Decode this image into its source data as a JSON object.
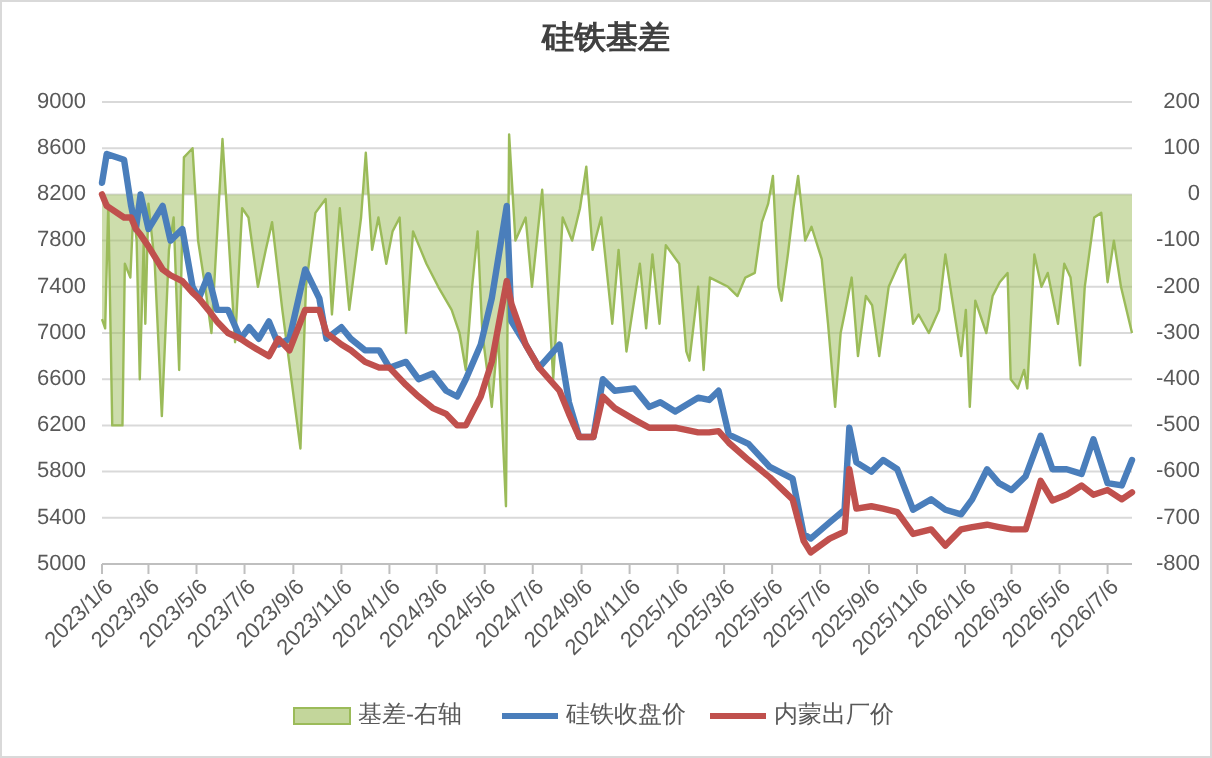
{
  "chart_data": {
    "type": "line",
    "title": "硅铁基差",
    "legend": "bottom",
    "grid": "y",
    "xlim": [
      "2023-01-06",
      "2026-08-06"
    ],
    "xticks": [
      {
        "value": "2023-01-06",
        "label": "2023/1/6"
      },
      {
        "value": "2023-03-06",
        "label": "2023/3/6"
      },
      {
        "value": "2023-05-06",
        "label": "2023/5/6"
      },
      {
        "value": "2023-07-06",
        "label": "2023/7/6"
      },
      {
        "value": "2023-09-06",
        "label": "2023/9/6"
      },
      {
        "value": "2023-11-06",
        "label": "2023/11/6"
      },
      {
        "value": "2024-01-06",
        "label": "2024/1/6"
      },
      {
        "value": "2024-03-06",
        "label": "2024/3/6"
      },
      {
        "value": "2024-05-06",
        "label": "2024/5/6"
      },
      {
        "value": "2024-07-06",
        "label": "2024/7/6"
      },
      {
        "value": "2024-09-06",
        "label": "2024/9/6"
      },
      {
        "value": "2024-11-06",
        "label": "2024/11/6"
      },
      {
        "value": "2025-01-06",
        "label": "2025/1/6"
      },
      {
        "value": "2025-03-06",
        "label": "2025/3/6"
      },
      {
        "value": "2025-05-06",
        "label": "2025/5/6"
      },
      {
        "value": "2025-07-06",
        "label": "2025/7/6"
      },
      {
        "value": "2025-09-06",
        "label": "2025/9/6"
      },
      {
        "value": "2025-11-06",
        "label": "2025/11/6"
      },
      {
        "value": "2026-01-06",
        "label": "2026/1/6"
      },
      {
        "value": "2026-03-06",
        "label": "2026/3/6"
      },
      {
        "value": "2026-05-06",
        "label": "2026/5/6"
      },
      {
        "value": "2026-07-06",
        "label": "2026/7/6"
      }
    ],
    "ylim": [
      5000,
      9000
    ],
    "yticks": [
      5000,
      5400,
      5800,
      6200,
      6600,
      7000,
      7400,
      7800,
      8200,
      8600,
      9000
    ],
    "y2lim": [
      -800,
      200
    ],
    "y2ticks": [
      -800,
      -700,
      -600,
      -500,
      -400,
      -300,
      -200,
      -100,
      0,
      100,
      200
    ],
    "series": [
      {
        "name": "基差-右轴",
        "type": "area",
        "axis": "y2",
        "color": "#9bbb59",
        "x": [
          "2023-01-06",
          "2023-01-10",
          "2023-01-14",
          "2023-01-19",
          "2023-02-01",
          "2023-02-04",
          "2023-02-11",
          "2023-02-15",
          "2023-02-19",
          "2023-02-23",
          "2023-02-28",
          "2023-03-02",
          "2023-03-06",
          "2023-03-14",
          "2023-03-23",
          "2023-04-01",
          "2023-04-07",
          "2023-04-14",
          "2023-04-20",
          "2023-05-01",
          "2023-05-08",
          "2023-05-17",
          "2023-05-25",
          "2023-06-08",
          "2023-06-16",
          "2023-06-24",
          "2023-07-03",
          "2023-07-11",
          "2023-07-23",
          "2023-08-02",
          "2023-08-10",
          "2023-08-23",
          "2023-09-05",
          "2023-09-15",
          "2023-09-22",
          "2023-10-04",
          "2023-10-17",
          "2023-10-25",
          "2023-11-04",
          "2023-11-16",
          "2023-12-01",
          "2023-12-07",
          "2023-12-15",
          "2023-12-23",
          "2024-01-02",
          "2024-01-10",
          "2024-01-19",
          "2024-01-27",
          "2024-02-05",
          "2024-02-22",
          "2024-03-08",
          "2024-03-25",
          "2024-04-04",
          "2024-04-12",
          "2024-04-20",
          "2024-04-27",
          "2024-05-03",
          "2024-05-15",
          "2024-05-23",
          "2024-06-02",
          "2024-06-06",
          "2024-06-14",
          "2024-06-27",
          "2024-07-05",
          "2024-07-18",
          "2024-08-01",
          "2024-08-13",
          "2024-08-25",
          "2024-09-04",
          "2024-09-12",
          "2024-09-20",
          "2024-10-01",
          "2024-10-15",
          "2024-10-23",
          "2024-11-02",
          "2024-11-10",
          "2024-11-19",
          "2024-11-27",
          "2024-12-05",
          "2024-12-14",
          "2024-12-22",
          "2025-01-08",
          "2025-01-17",
          "2025-01-21",
          "2025-02-01",
          "2025-02-08",
          "2025-02-16",
          "2025-03-11",
          "2025-03-23",
          "2025-04-02",
          "2025-04-14",
          "2025-04-23",
          "2025-05-01",
          "2025-05-07",
          "2025-05-14",
          "2025-05-18",
          "2025-05-26",
          "2025-06-02",
          "2025-06-08",
          "2025-06-17",
          "2025-06-25",
          "2025-07-08",
          "2025-07-16",
          "2025-07-22",
          "2025-07-25",
          "2025-08-01",
          "2025-08-07",
          "2025-08-15",
          "2025-08-23",
          "2025-09-02",
          "2025-09-10",
          "2025-09-19",
          "2025-10-01",
          "2025-10-14",
          "2025-10-22",
          "2025-11-01",
          "2025-11-08",
          "2025-11-21",
          "2025-12-04",
          "2025-12-12",
          "2025-12-20",
          "2026-01-01",
          "2026-01-07",
          "2026-01-12",
          "2026-01-19",
          "2026-02-02",
          "2026-02-10",
          "2026-02-19",
          "2026-03-01",
          "2026-03-05",
          "2026-03-14",
          "2026-03-22",
          "2026-03-26",
          "2026-04-04",
          "2026-04-13",
          "2026-04-21",
          "2026-05-04",
          "2026-05-12",
          "2026-05-20",
          "2026-06-01",
          "2026-06-07",
          "2026-06-19",
          "2026-06-28",
          "2026-07-06",
          "2026-07-14",
          "2026-07-23",
          "2026-08-06"
        ],
        "values": [
          -270,
          -290,
          -20,
          -500,
          -500,
          -150,
          -180,
          -30,
          -100,
          -400,
          -100,
          -280,
          -20,
          -150,
          -480,
          -120,
          -50,
          -380,
          80,
          100,
          -100,
          -200,
          -300,
          120,
          -100,
          -320,
          -30,
          -50,
          -200,
          -120,
          -60,
          -250,
          -420,
          -550,
          -200,
          -40,
          -10,
          -260,
          -30,
          -250,
          -50,
          90,
          -120,
          -50,
          -150,
          -80,
          -50,
          -300,
          -80,
          -150,
          -200,
          -250,
          -300,
          -380,
          -200,
          -80,
          -300,
          -460,
          -300,
          -675,
          130,
          -100,
          -50,
          -200,
          10,
          -400,
          -50,
          -100,
          -30,
          60,
          -120,
          -50,
          -280,
          -120,
          -340,
          -250,
          -150,
          -290,
          -130,
          -280,
          -110,
          -150,
          -340,
          -360,
          -200,
          -380,
          -180,
          -200,
          -220,
          -180,
          -170,
          -60,
          -20,
          40,
          -200,
          -230,
          -130,
          -30,
          40,
          -100,
          -70,
          -140,
          -280,
          -400,
          -460,
          -300,
          -250,
          -180,
          -350,
          -220,
          -240,
          -350,
          -200,
          -150,
          -130,
          -280,
          -260,
          -300,
          -250,
          -130,
          -220,
          -350,
          -250,
          -460,
          -230,
          -300,
          -220,
          -190,
          -170,
          -400,
          -420,
          -380,
          -420,
          -130,
          -200,
          -170,
          -280,
          -150,
          -180,
          -370,
          -200,
          -50,
          -40,
          -190,
          -100,
          -200,
          -300
        ]
      },
      {
        "name": "硅铁收盘价",
        "color": "#4a7ebb",
        "x": [
          "2023-01-06",
          "2023-01-12",
          "2023-02-03",
          "2023-02-12",
          "2023-02-18",
          "2023-02-24",
          "2023-03-06",
          "2023-03-24",
          "2023-04-03",
          "2023-04-18",
          "2023-05-01",
          "2023-05-09",
          "2023-05-21",
          "2023-06-01",
          "2023-06-15",
          "2023-07-01",
          "2023-07-12",
          "2023-07-24",
          "2023-08-06",
          "2023-08-18",
          "2023-09-01",
          "2023-09-21",
          "2023-10-09",
          "2023-10-18",
          "2023-11-06",
          "2023-11-18",
          "2023-12-06",
          "2023-12-24",
          "2024-01-06",
          "2024-01-27",
          "2024-02-12",
          "2024-03-01",
          "2024-03-18",
          "2024-04-01",
          "2024-04-12",
          "2024-05-01",
          "2024-05-15",
          "2024-06-03",
          "2024-06-09",
          "2024-06-27",
          "2024-07-14",
          "2024-08-09",
          "2024-08-21",
          "2024-09-03",
          "2024-09-21",
          "2024-10-03",
          "2024-10-18",
          "2024-11-12",
          "2024-12-01",
          "2024-12-15",
          "2025-01-03",
          "2025-02-01",
          "2025-02-15",
          "2025-02-27",
          "2025-03-12",
          "2025-04-06",
          "2025-05-03",
          "2025-06-01",
          "2025-06-15",
          "2025-06-24",
          "2025-07-18",
          "2025-08-06",
          "2025-08-12",
          "2025-08-21",
          "2025-09-09",
          "2025-09-24",
          "2025-10-12",
          "2025-11-01",
          "2025-11-24",
          "2025-12-12",
          "2026-01-01",
          "2026-01-15",
          "2026-02-03",
          "2026-02-18",
          "2026-03-06",
          "2026-03-24",
          "2026-04-12",
          "2026-04-27",
          "2026-05-15",
          "2026-06-03",
          "2026-06-18",
          "2026-07-06",
          "2026-07-24",
          "2026-08-06"
        ],
        "values": [
          8300,
          8550,
          8500,
          8100,
          7900,
          8200,
          7900,
          8100,
          7800,
          7900,
          7400,
          7300,
          7500,
          7200,
          7200,
          6950,
          7050,
          6950,
          7100,
          6900,
          6950,
          7550,
          7300,
          6950,
          7050,
          6950,
          6850,
          6850,
          6700,
          6750,
          6600,
          6650,
          6500,
          6450,
          6600,
          6900,
          7300,
          8100,
          7100,
          6900,
          6700,
          6900,
          6400,
          6100,
          6100,
          6600,
          6500,
          6520,
          6360,
          6400,
          6320,
          6440,
          6420,
          6500,
          6120,
          6040,
          5840,
          5740,
          5260,
          5220,
          5360,
          5470,
          6180,
          5880,
          5800,
          5900,
          5820,
          5470,
          5560,
          5470,
          5430,
          5560,
          5820,
          5700,
          5640,
          5760,
          6110,
          5820,
          5820,
          5780,
          6080,
          5700,
          5680,
          5900
        ]
      },
      {
        "name": "内蒙出厂价",
        "color": "#c0504d",
        "x": [
          "2023-01-06",
          "2023-01-12",
          "2023-02-03",
          "2023-02-12",
          "2023-02-18",
          "2023-02-24",
          "2023-03-06",
          "2023-03-24",
          "2023-04-03",
          "2023-04-18",
          "2023-05-01",
          "2023-05-09",
          "2023-05-21",
          "2023-06-01",
          "2023-06-15",
          "2023-07-01",
          "2023-07-12",
          "2023-07-24",
          "2023-08-06",
          "2023-08-18",
          "2023-09-01",
          "2023-09-21",
          "2023-10-09",
          "2023-10-18",
          "2023-11-06",
          "2023-11-18",
          "2023-12-06",
          "2023-12-24",
          "2024-01-06",
          "2024-01-27",
          "2024-02-12",
          "2024-03-01",
          "2024-03-18",
          "2024-04-01",
          "2024-04-12",
          "2024-05-01",
          "2024-05-15",
          "2024-06-03",
          "2024-06-09",
          "2024-06-27",
          "2024-07-14",
          "2024-08-09",
          "2024-08-21",
          "2024-09-03",
          "2024-09-21",
          "2024-10-03",
          "2024-10-18",
          "2024-11-12",
          "2024-12-01",
          "2024-12-15",
          "2025-01-03",
          "2025-02-01",
          "2025-02-15",
          "2025-02-27",
          "2025-03-12",
          "2025-04-06",
          "2025-05-03",
          "2025-06-01",
          "2025-06-15",
          "2025-06-24",
          "2025-07-18",
          "2025-08-06",
          "2025-08-12",
          "2025-08-21",
          "2025-09-09",
          "2025-09-24",
          "2025-10-12",
          "2025-11-01",
          "2025-11-24",
          "2025-12-12",
          "2026-01-01",
          "2026-01-15",
          "2026-02-03",
          "2026-02-18",
          "2026-03-06",
          "2026-03-24",
          "2026-04-12",
          "2026-04-27",
          "2026-05-15",
          "2026-06-03",
          "2026-06-18",
          "2026-07-06",
          "2026-07-24",
          "2026-08-06"
        ],
        "values": [
          8200,
          8100,
          8000,
          8000,
          7900,
          7850,
          7750,
          7550,
          7500,
          7450,
          7350,
          7300,
          7200,
          7100,
          7000,
          6950,
          6900,
          6850,
          6800,
          6950,
          6850,
          7200,
          7200,
          7000,
          6900,
          6850,
          6750,
          6700,
          6700,
          6550,
          6450,
          6350,
          6300,
          6200,
          6200,
          6450,
          6750,
          7450,
          7250,
          6900,
          6700,
          6500,
          6300,
          6100,
          6100,
          6450,
          6350,
          6250,
          6180,
          6180,
          6180,
          6140,
          6140,
          6150,
          6050,
          5900,
          5750,
          5560,
          5200,
          5100,
          5220,
          5280,
          5820,
          5480,
          5500,
          5480,
          5450,
          5260,
          5300,
          5160,
          5300,
          5320,
          5340,
          5320,
          5300,
          5300,
          5720,
          5550,
          5600,
          5680,
          5600,
          5640,
          5560,
          5620
        ]
      }
    ]
  }
}
